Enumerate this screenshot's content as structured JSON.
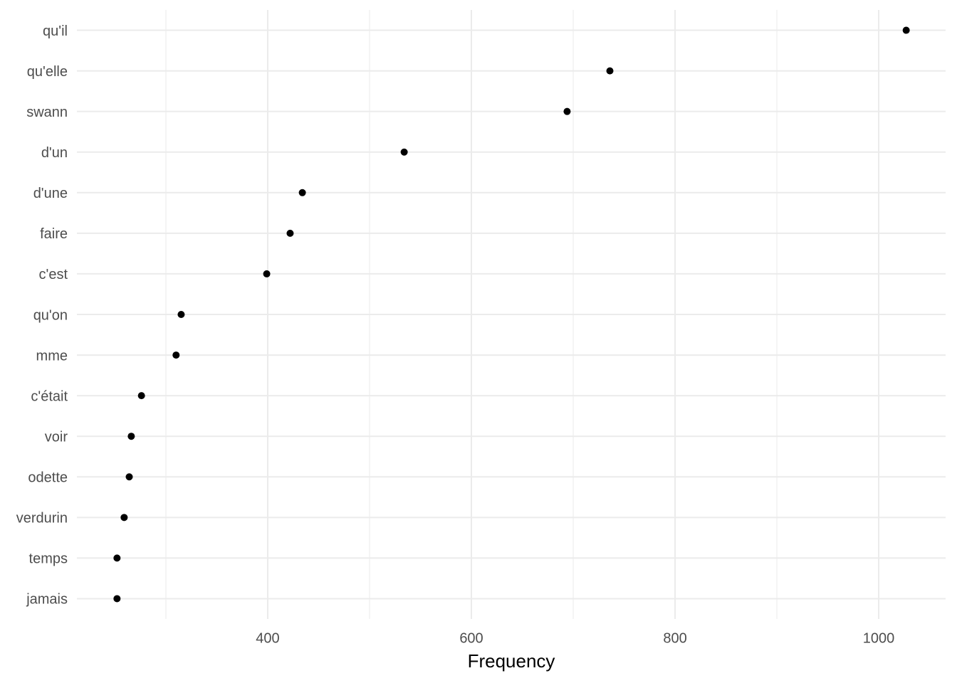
{
  "chart_data": {
    "type": "dot",
    "x_label": "Frequency",
    "categories": [
      "qu'il",
      "qu'elle",
      "swann",
      "d'un",
      "d'une",
      "faire",
      "c'est",
      "qu'on",
      "mme",
      "c'était",
      "voir",
      "odette",
      "verdurin",
      "temps",
      "jamais"
    ],
    "values": [
      1027,
      736,
      694,
      534,
      434,
      422,
      399,
      315,
      310,
      276,
      266,
      264,
      259,
      252,
      252
    ],
    "color": "#000000",
    "xlim": [
      212.6,
      1065.7
    ],
    "xticks": [
      400,
      600,
      800,
      1000
    ],
    "xminor": [
      300,
      500,
      700,
      900
    ],
    "grid": true
  }
}
